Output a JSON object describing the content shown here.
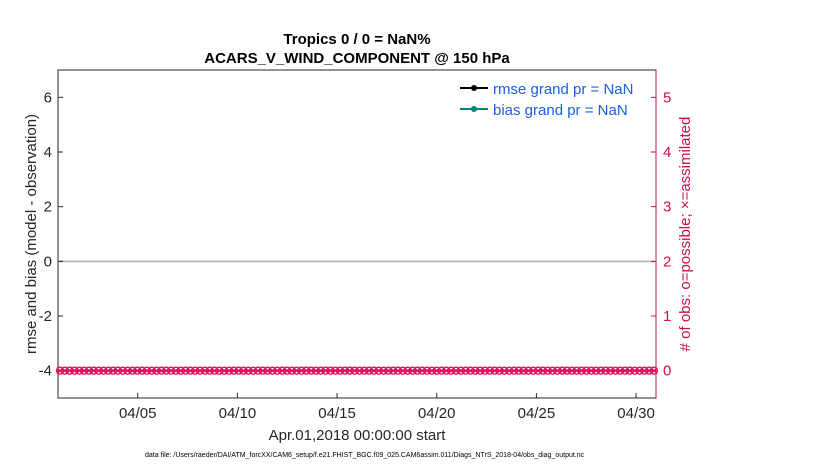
{
  "chart_data": {
    "type": "line",
    "title": [
      "Tropics 0 / 0 = NaN%",
      "ACARS_V_WIND_COMPONENT @ 150 hPa"
    ],
    "xlabel": "Apr.01,2018 00:00:00 start",
    "ylabel_left": "rmse and bias (model - observation)",
    "ylabel_right": "# of obs: o=possible; ×=assimilated",
    "x_range": [
      "2018-04-01",
      "2018-04-31"
    ],
    "x_ticks": [
      "04/05",
      "04/10",
      "04/15",
      "04/20",
      "04/25",
      "04/30"
    ],
    "x_tick_days": [
      5,
      10,
      15,
      20,
      25,
      30
    ],
    "ylim_left": [
      -5,
      7
    ],
    "y_ticks_left": [
      "-4",
      "-2",
      "0",
      "2",
      "4",
      "6"
    ],
    "ylim_right": [
      -0.5,
      5.5
    ],
    "y_ticks_right": [
      "0",
      "1",
      "2",
      "3",
      "4",
      "5"
    ],
    "zero_line_left": 0,
    "obs_series": {
      "possible": 0,
      "assimilated": 0,
      "color": "#e0115f"
    },
    "series": [
      {
        "name": "rmse grand pr = NaN",
        "color": "#000000",
        "values": []
      },
      {
        "name": "bias grand pr = NaN",
        "color": "#00807f",
        "values": []
      }
    ],
    "legend_placement": "top-right",
    "grid": false
  },
  "footnote": "data file: /Users/raeder/DAI/ATM_forcXX/CAM6_setup/f.e21.FHIST_BGC.f09_025.CAM6assim.011/Diags_NTrS_2018-04/obs_diag_output.nc",
  "colors": {
    "right_axis": "#c8104e",
    "legend_text": "#1a5ee6",
    "zero_line": "#bbbbbb"
  }
}
